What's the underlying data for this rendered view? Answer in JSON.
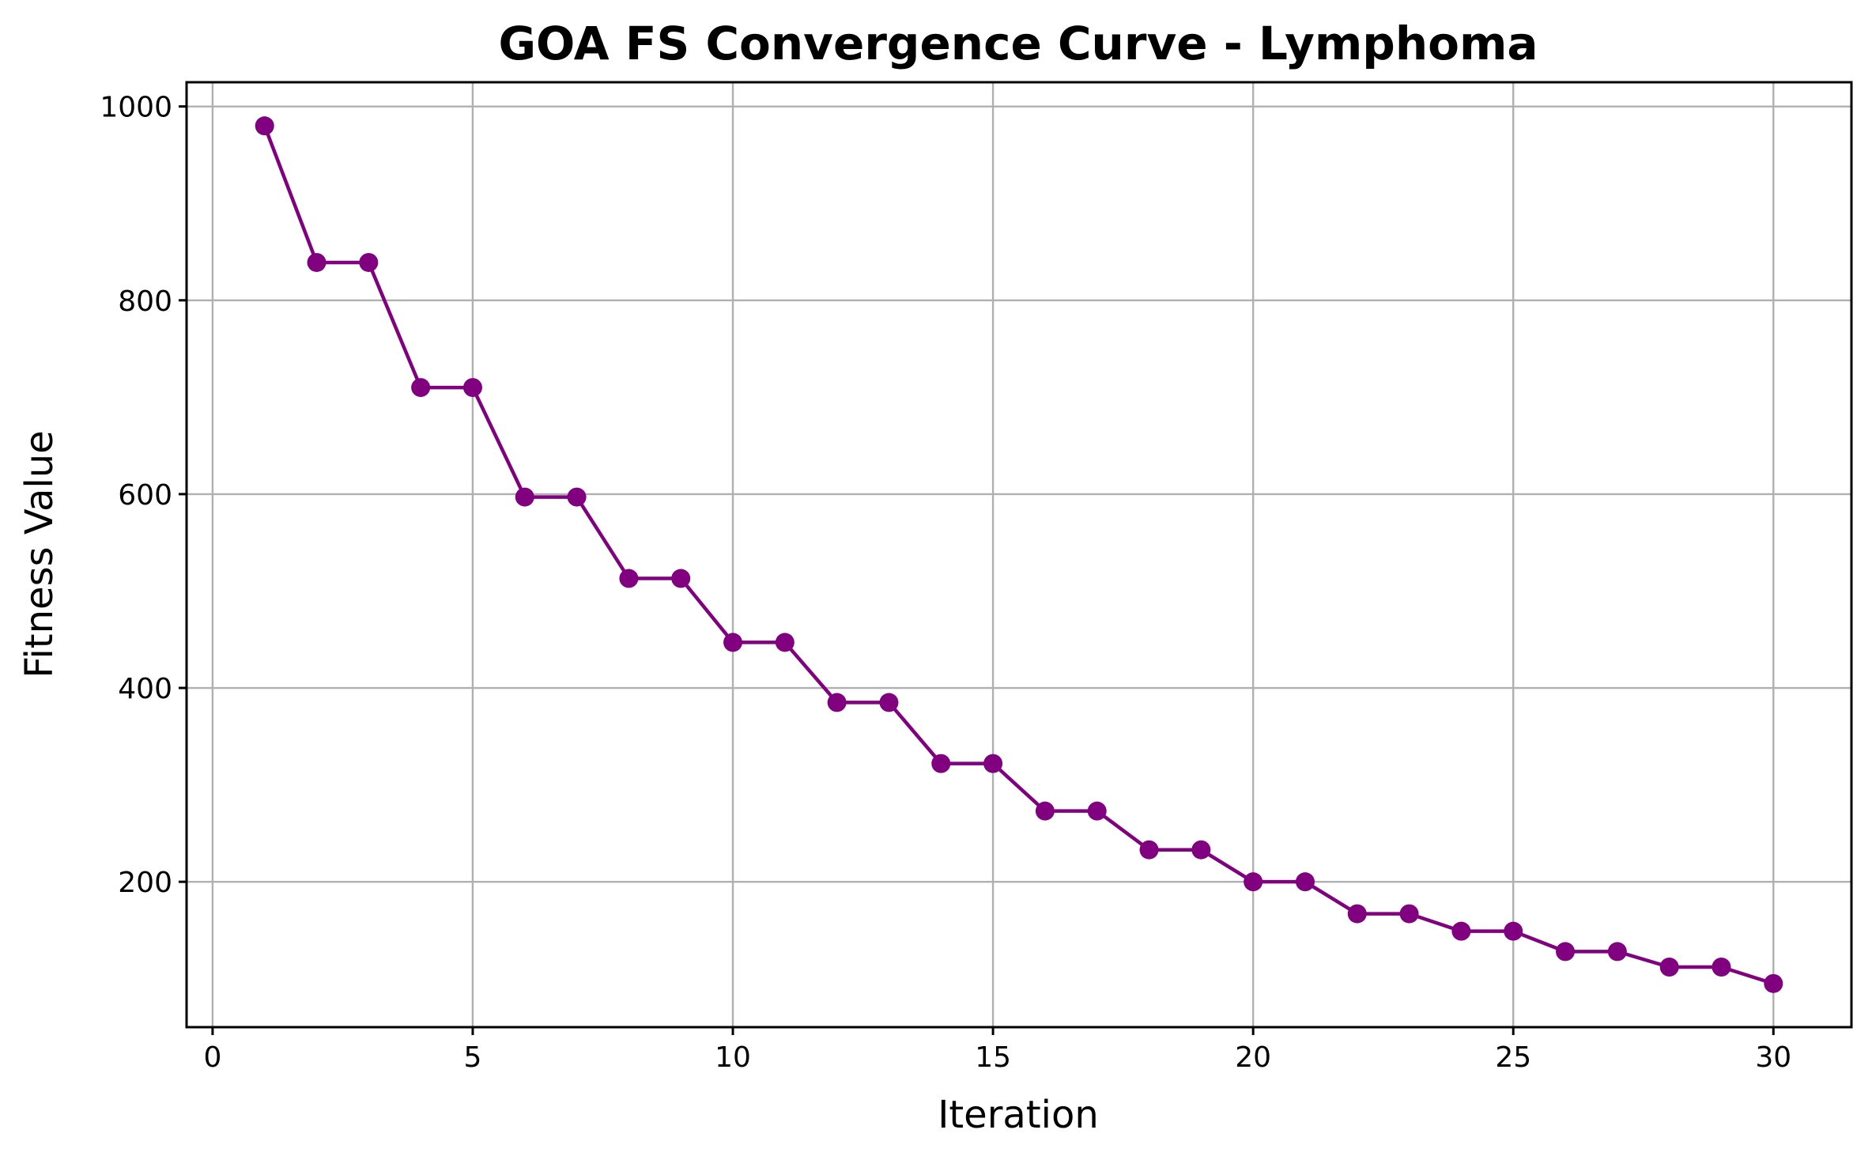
{
  "chart_data": {
    "type": "line",
    "title": "GOA FS Convergence Curve - Lymphoma",
    "xlabel": "Iteration",
    "ylabel": "Fitness Value",
    "xlim": [
      -0.5,
      31.5
    ],
    "ylim": [
      50,
      1025
    ],
    "xticks": [
      0,
      5,
      10,
      15,
      20,
      25,
      30
    ],
    "yticks": [
      200,
      400,
      600,
      800,
      1000
    ],
    "grid": true,
    "colors": {
      "series": "#800080"
    },
    "marker": "circle",
    "series": [
      {
        "x": [
          1,
          2,
          3,
          4,
          5,
          6,
          7,
          8,
          9,
          10,
          11,
          12,
          13,
          14,
          15,
          16,
          17,
          18,
          19,
          20,
          21,
          22,
          23,
          24,
          25,
          26,
          27,
          28,
          29,
          30
        ],
        "values": [
          980,
          839,
          839,
          710,
          710,
          597,
          597,
          513,
          513,
          447,
          447,
          385,
          385,
          322,
          322,
          273,
          273,
          233,
          233,
          200,
          200,
          167,
          167,
          149,
          149,
          128,
          128,
          112,
          112,
          95
        ]
      }
    ]
  }
}
